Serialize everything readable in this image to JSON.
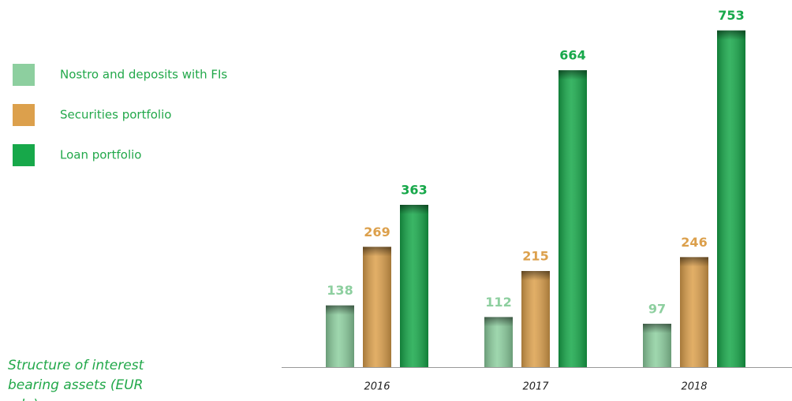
{
  "chart_data": {
    "type": "bar",
    "title": "Structure of interest bearing assets (EUR mln)",
    "categories": [
      "2016",
      "2017",
      "2018"
    ],
    "series": [
      {
        "name": "Nostro and deposits with FIs",
        "color": "#8dcf9f",
        "values": [
          138,
          112,
          97
        ]
      },
      {
        "name": "Securities portfolio",
        "color": "#dca04c",
        "values": [
          269,
          215,
          246
        ]
      },
      {
        "name": "Loan portfolio",
        "color": "#17a84a",
        "values": [
          363,
          664,
          753
        ]
      }
    ],
    "ylim": [
      0,
      800
    ]
  }
}
